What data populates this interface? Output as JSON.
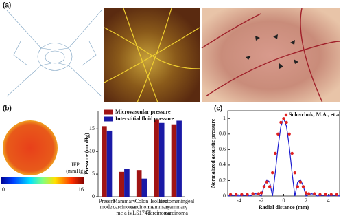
{
  "panels": {
    "a": "(a)",
    "b": "(b)",
    "c": "(c)"
  },
  "colorbar": {
    "min": "0",
    "max": "16",
    "label": "IFP (mmHg)"
  },
  "chart_data": [
    {
      "type": "bar",
      "ylabel": "Pressure (mmHg)",
      "categories": [
        "Present\nmodel",
        "Mammary\ncarcinoma\nmc a iv",
        "Colon\ncarcinoma\nLS174T",
        "Isolated\nmammary\ncarcinoma",
        "Leptomeningeal\nmammary\ncarcinoma"
      ],
      "series": [
        {
          "name": "Microvascular pressure",
          "color": "#a01414",
          "values": [
            15.6,
            5.5,
            5.9,
            17.1,
            16.0
          ]
        },
        {
          "name": "Interstitial fluid pressure",
          "color": "#1a1aa6",
          "values": [
            14.6,
            6.1,
            4.0,
            16.3,
            16.8
          ]
        }
      ],
      "ylim": [
        0,
        19
      ],
      "yticks": [
        0,
        5,
        10,
        15
      ],
      "legend": "top-left"
    },
    {
      "type": "line",
      "xlabel": "Radial distance (mm)",
      "ylabel": "Normalized acoustic pressure",
      "xlim": [
        -5,
        5
      ],
      "xticks": [
        -4,
        -2,
        0,
        2,
        4
      ],
      "ylim": [
        0,
        1.1
      ],
      "yticks": [
        0,
        0.2,
        0.4,
        0.6,
        0.8,
        1.0
      ],
      "legend": "top-right",
      "series": [
        {
          "type": "line",
          "color": "#1a1ad0",
          "x": [
            -5,
            -4.5,
            -4,
            -3.5,
            -3,
            -2.75,
            -2.5,
            -2.25,
            -2,
            -1.75,
            -1.5,
            -1.25,
            -1,
            -0.75,
            -0.5,
            -0.25,
            0,
            0.25,
            0.5,
            0.75,
            1,
            1.25,
            1.5,
            1.75,
            2,
            2.25,
            2.5,
            2.75,
            3,
            3.5,
            4,
            4.5,
            5
          ],
          "values": [
            0,
            0.01,
            0,
            0.01,
            0,
            0.02,
            0.03,
            0.02,
            0,
            0.13,
            0.21,
            0.18,
            0,
            0.3,
            0.64,
            0.9,
            1,
            0.9,
            0.64,
            0.3,
            0,
            0.18,
            0.21,
            0.13,
            0,
            0.02,
            0.03,
            0.02,
            0,
            0.01,
            0,
            0.01,
            0
          ]
        },
        {
          "type": "scatter",
          "name": "Solovchuk, M.A., et al",
          "color": "#e02020",
          "x": [
            -4.75,
            -4.25,
            -3.75,
            -3.25,
            -2.75,
            -2.25,
            -2,
            -1.75,
            -1.5,
            -1.25,
            -1,
            -0.75,
            -0.5,
            -0.25,
            0,
            0.25,
            0.5,
            0.75,
            1,
            1.25,
            1.5,
            1.75,
            2,
            2.25,
            2.75,
            3.25,
            3.75,
            4.25,
            4.75
          ],
          "values": [
            0.02,
            0.02,
            0.02,
            0.02,
            0.03,
            0.03,
            0.04,
            0.12,
            0.18,
            0.12,
            0.3,
            0.55,
            0.8,
            0.95,
            1,
            0.95,
            0.8,
            0.55,
            0.3,
            0.12,
            0.18,
            0.12,
            0.04,
            0.03,
            0.03,
            0.02,
            0.02,
            0.02,
            0.02
          ]
        }
      ]
    }
  ]
}
